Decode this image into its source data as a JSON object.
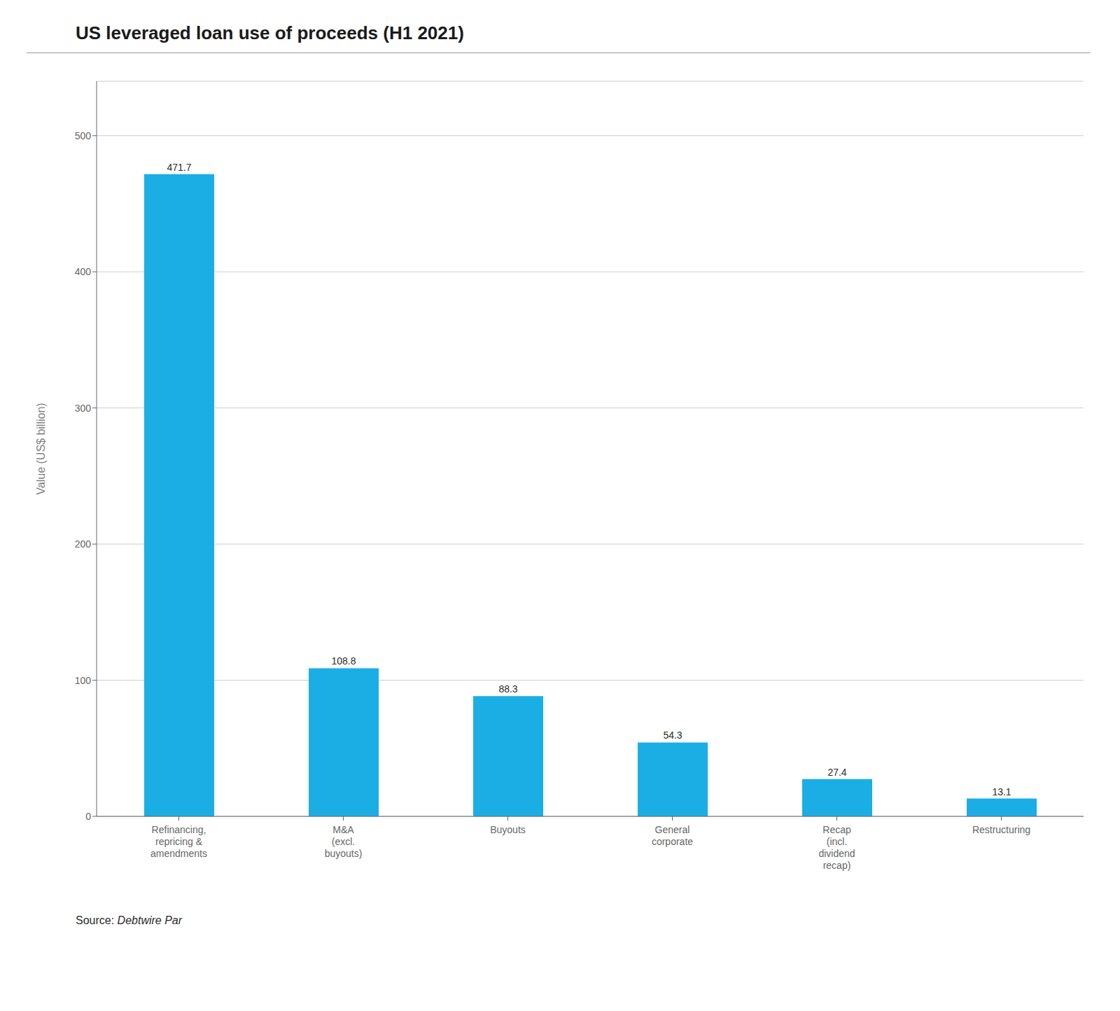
{
  "chart_data": {
    "type": "bar",
    "title": "US leveraged loan use of proceeds (H1 2021)",
    "categories": [
      "Refinancing,\nrepricing &\namendments",
      "M&A\n(excl.\nbuyouts)",
      "Buyouts",
      "General\ncorporate",
      "Recap\n(incl.\ndividend\nrecap)",
      "Restructuring"
    ],
    "values": [
      471.7,
      108.8,
      88.3,
      54.3,
      27.4,
      13.1
    ],
    "color": "#1aaee5",
    "ylabel": "Value (US$ billion)",
    "ylim": [
      0,
      540
    ],
    "yticks": [
      0,
      100,
      200,
      300,
      400,
      500
    ],
    "grid": true,
    "data_labels": true,
    "annotations": [
      "Source: ",
      "Debtwire Par"
    ]
  }
}
